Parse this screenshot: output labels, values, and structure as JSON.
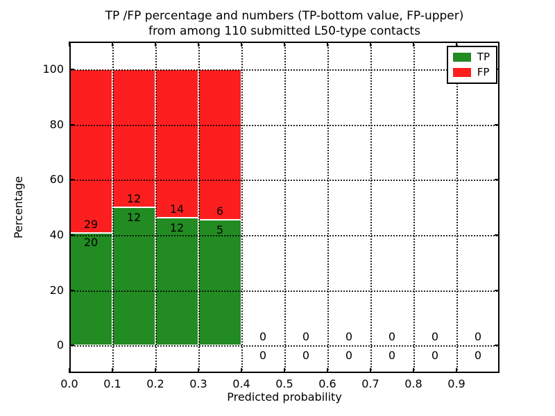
{
  "chart_data": {
    "type": "bar",
    "stacked": true,
    "title": "TP /FP percentage and numbers (TP-bottom value, FP-upper) from among 110 submitted L50-type contacts",
    "title_lines": [
      "TP /FP percentage and numbers (TP-bottom value, FP-upper)",
      "from among 110 submitted L50-type contacts"
    ],
    "xlabel": "Predicted probability",
    "ylabel": "Percentage",
    "total_contacts": 110,
    "xlim": [
      0.0,
      1.0
    ],
    "ylim": [
      -10,
      110
    ],
    "bin_width": 0.1,
    "grid": true,
    "grid_style": "dotted",
    "legend_position": "upper right",
    "xtick_positions": [
      0.0,
      0.1,
      0.2,
      0.3,
      0.4,
      0.5,
      0.6,
      0.7,
      0.8,
      0.9
    ],
    "xtick_labels": [
      "0.0",
      "0.1",
      "0.2",
      "0.3",
      "0.4",
      "0.5",
      "0.6",
      "0.7",
      "0.8",
      "0.9"
    ],
    "ytick_positions": [
      0,
      20,
      40,
      60,
      80,
      100
    ],
    "ytick_labels": [
      "0",
      "20",
      "40",
      "60",
      "80",
      "100"
    ],
    "categories": [
      "0.0-0.1",
      "0.1-0.2",
      "0.2-0.3",
      "0.3-0.4",
      "0.4-0.5",
      "0.5-0.6",
      "0.6-0.7",
      "0.7-0.8",
      "0.8-0.9",
      "0.9-1.0"
    ],
    "series": [
      {
        "name": "TP",
        "color": "#228b22",
        "counts": [
          20,
          12,
          12,
          5,
          0,
          0,
          0,
          0,
          0,
          0
        ],
        "pct": [
          40.8,
          50.0,
          46.2,
          45.5,
          0,
          0,
          0,
          0,
          0,
          0
        ]
      },
      {
        "name": "FP",
        "color": "#fd1f1f",
        "counts": [
          29,
          12,
          14,
          6,
          0,
          0,
          0,
          0,
          0,
          0
        ],
        "pct": [
          59.2,
          50.0,
          53.8,
          54.5,
          0,
          0,
          0,
          0,
          0,
          0
        ]
      }
    ],
    "colors": {
      "background": "#ffffff",
      "axes_frame": "#000000",
      "grid": "#000000",
      "bar_edge": "#ffffff",
      "text": "#000000"
    }
  }
}
